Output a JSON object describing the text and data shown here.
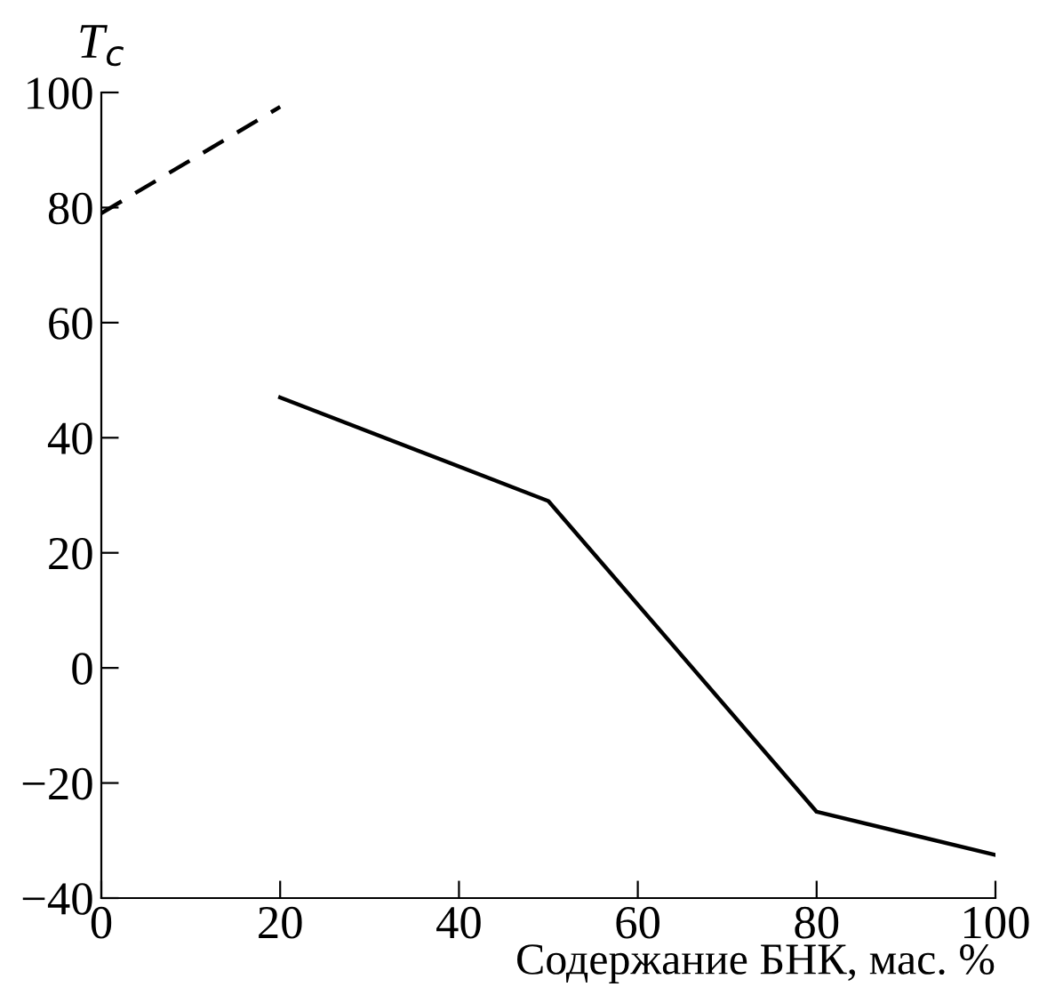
{
  "chart_data": {
    "type": "line",
    "xlabel": "Содержание БНК, мас. %",
    "ylabel": "T$_{c}$",
    "xlim": [
      0,
      100
    ],
    "ylim": [
      -40,
      100
    ],
    "xticks": [
      0,
      20,
      40,
      60,
      80,
      100
    ],
    "yticks": [
      {
        "value": -40,
        "label": "−40"
      },
      {
        "value": -20,
        "label": "−20"
      },
      0,
      20,
      40,
      60,
      80,
      100
    ],
    "grid": false,
    "legend": false,
    "marker": "none",
    "series": [
      {
        "color": "#000000",
        "line_style": "dashed",
        "x": [
          0,
          20
        ],
        "values": [
          79,
          97.5
        ]
      },
      {
        "color": "#000000",
        "line_style": "solid",
        "x": [
          20,
          50,
          80,
          100
        ],
        "values": [
          47,
          29,
          -25,
          -32.5
        ]
      }
    ]
  }
}
